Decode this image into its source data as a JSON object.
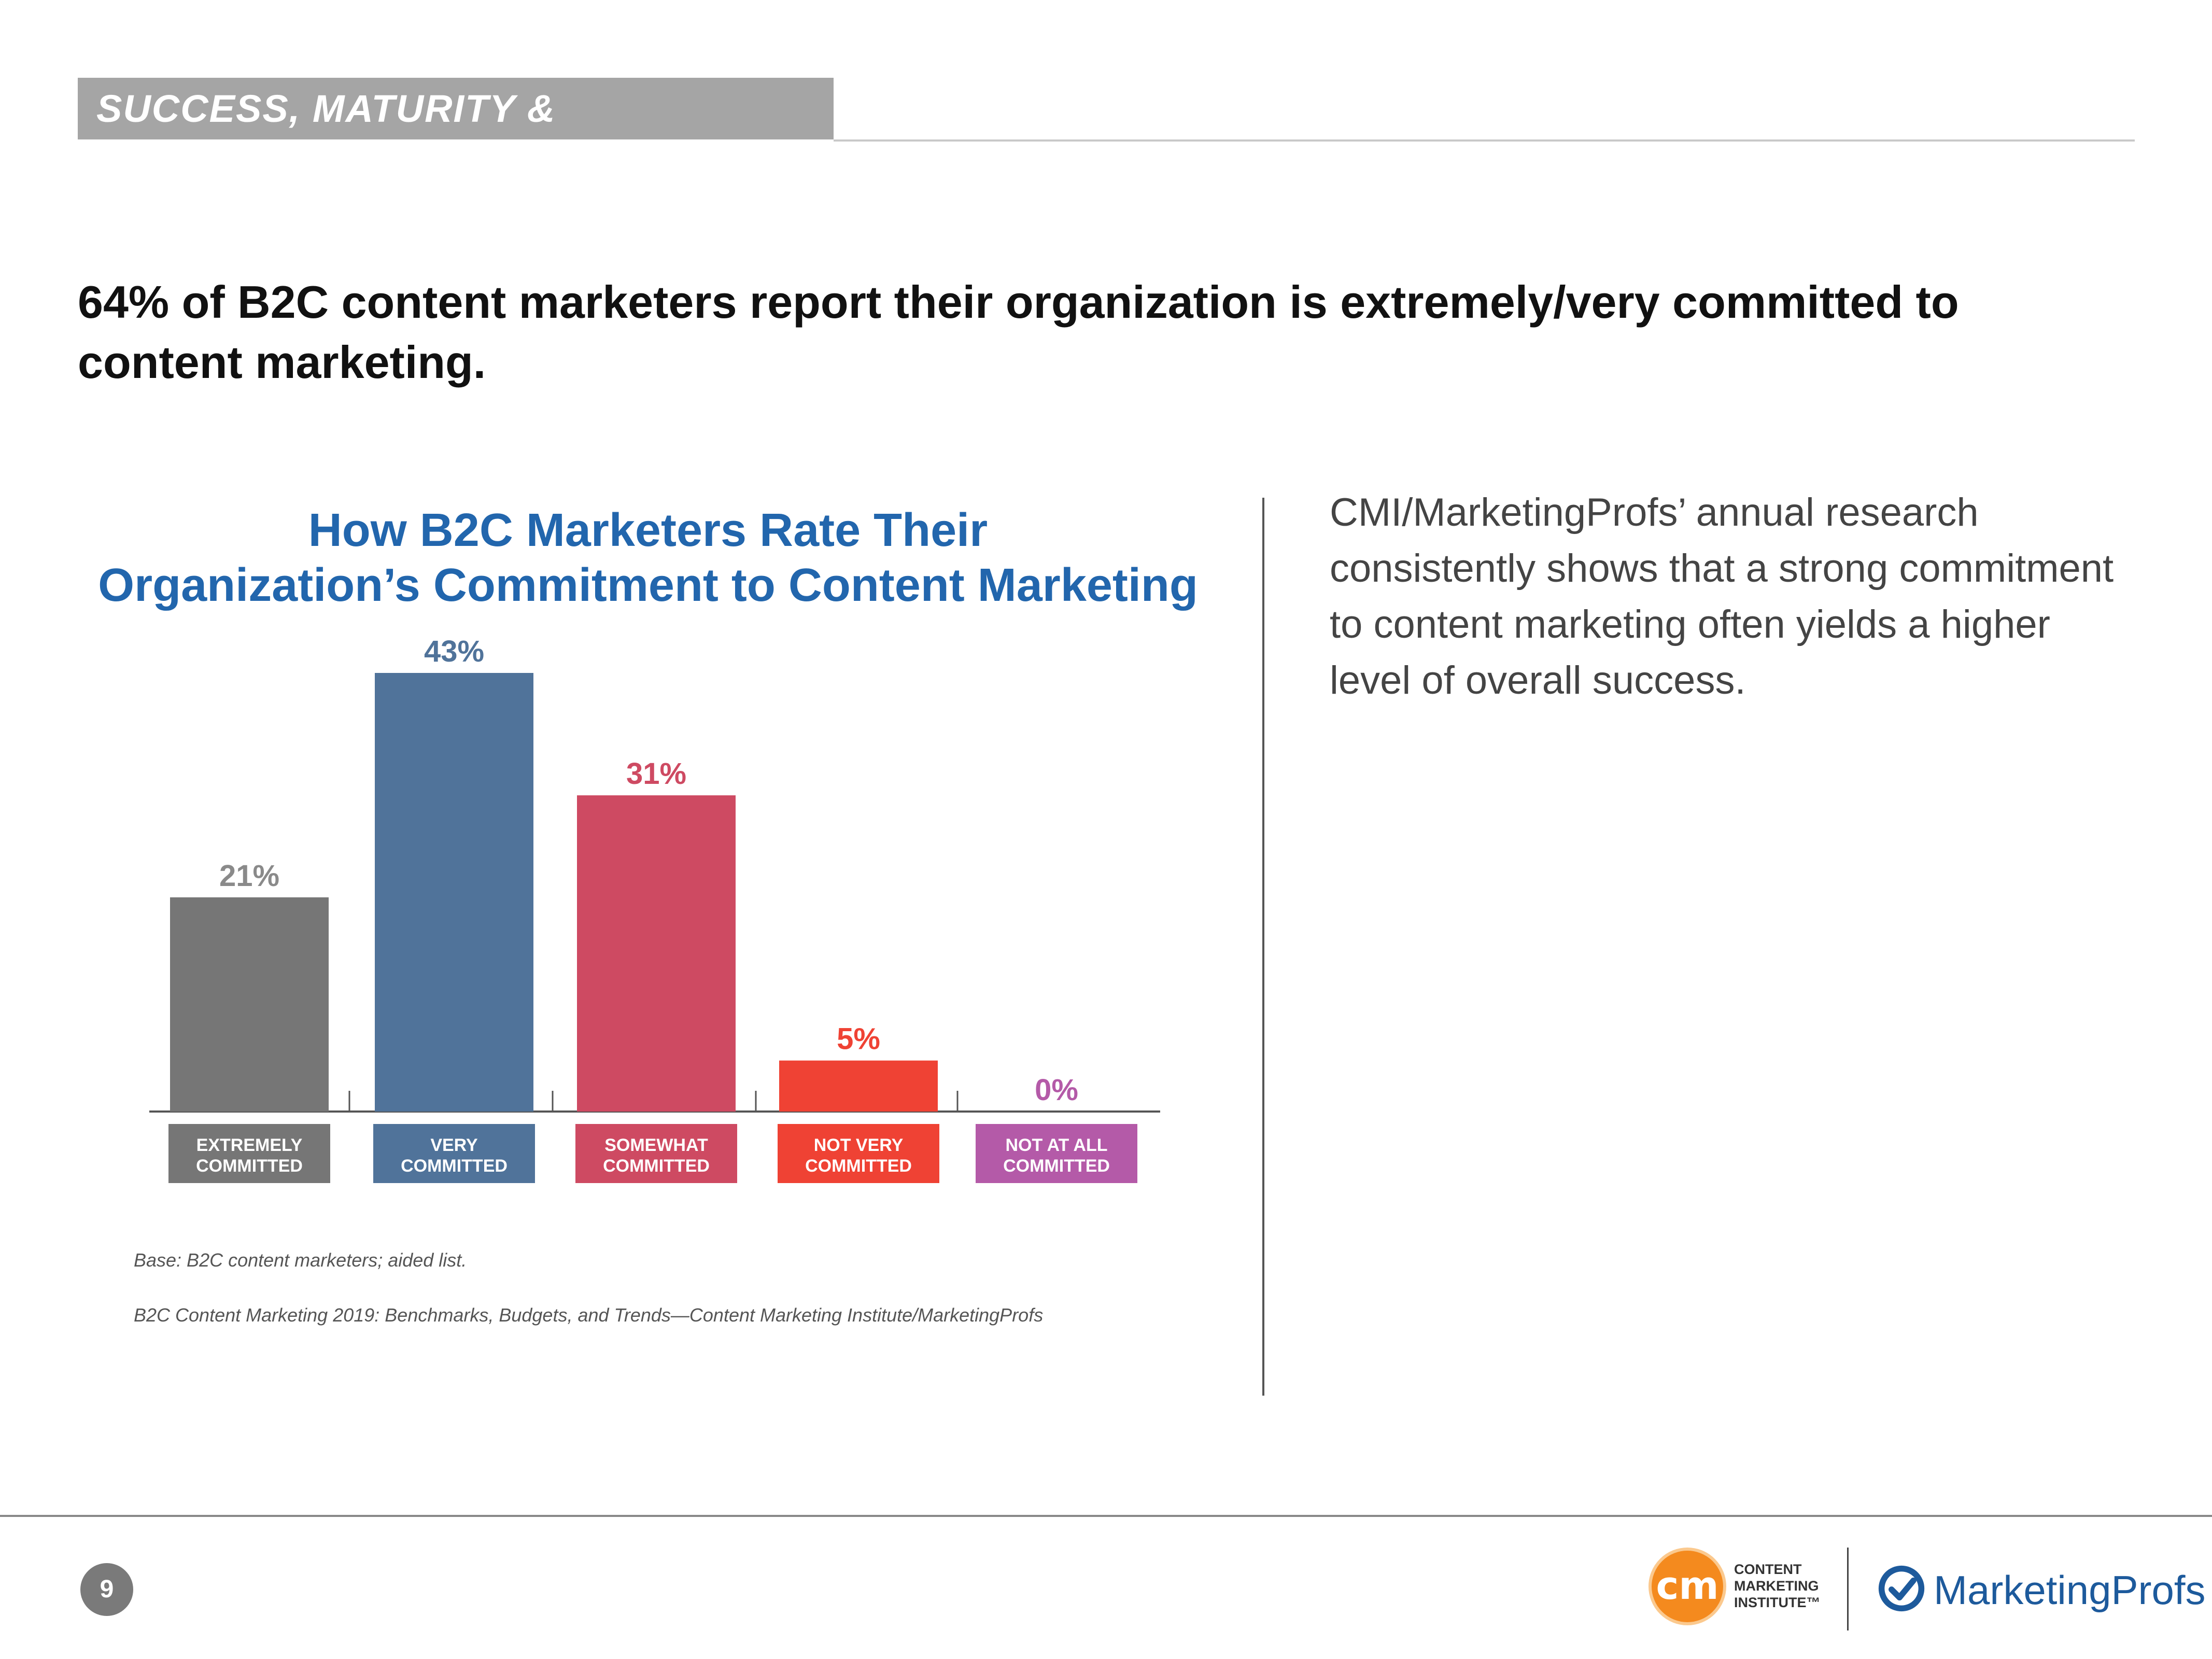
{
  "header": {
    "section_title": "SUCCESS, MATURITY & COMMITMENT"
  },
  "headline": "64% of B2C content marketers report their organization is extremely/very committed to content marketing.",
  "chart_title_line1": "How B2C Marketers Rate Their",
  "chart_title_line2": "Organization’s Commitment to Content Marketing",
  "chart_data": {
    "type": "bar",
    "title": "How B2C Marketers Rate Their Organization’s Commitment to Content Marketing",
    "xlabel": "",
    "ylabel": "",
    "ylim": [
      0,
      43
    ],
    "grid": false,
    "legend": "none",
    "categories": [
      [
        "EXTREMELY",
        "COMMITTED"
      ],
      [
        "VERY",
        "COMMITTED"
      ],
      [
        "SOMEWHAT",
        "COMMITTED"
      ],
      [
        "NOT VERY",
        "COMMITTED"
      ],
      [
        "NOT AT ALL",
        "COMMITTED"
      ]
    ],
    "values": [
      21,
      43,
      31,
      5,
      0
    ],
    "data_labels": [
      "21%",
      "43%",
      "31%",
      "5%",
      "0%"
    ],
    "bar_colors": [
      "#767676",
      "#50739a",
      "#ce4a62",
      "#ef4234",
      "#b45aa8"
    ],
    "label_colors": [
      "#8a8a8a",
      "#50739a",
      "#ce4a62",
      "#ef4234",
      "#b45aa8"
    ]
  },
  "side_text": "CMI/MarketingProfs’ annual research consistently shows that a strong commitment to content marketing often yields a higher level of overall success.",
  "notes": {
    "base": "Base: B2C content marketers; aided list.",
    "source": "B2C Content Marketing 2019: Benchmarks, Budgets, and Trends—Content Marketing Institute/MarketingProfs"
  },
  "footer": {
    "page_number": "9",
    "cmi_logo_mark": "cm",
    "cmi_logo_lines": [
      "CONTENT",
      "MARKETING",
      "INSTITUTE™"
    ],
    "mp_logo_text": "MarketingProfs"
  }
}
